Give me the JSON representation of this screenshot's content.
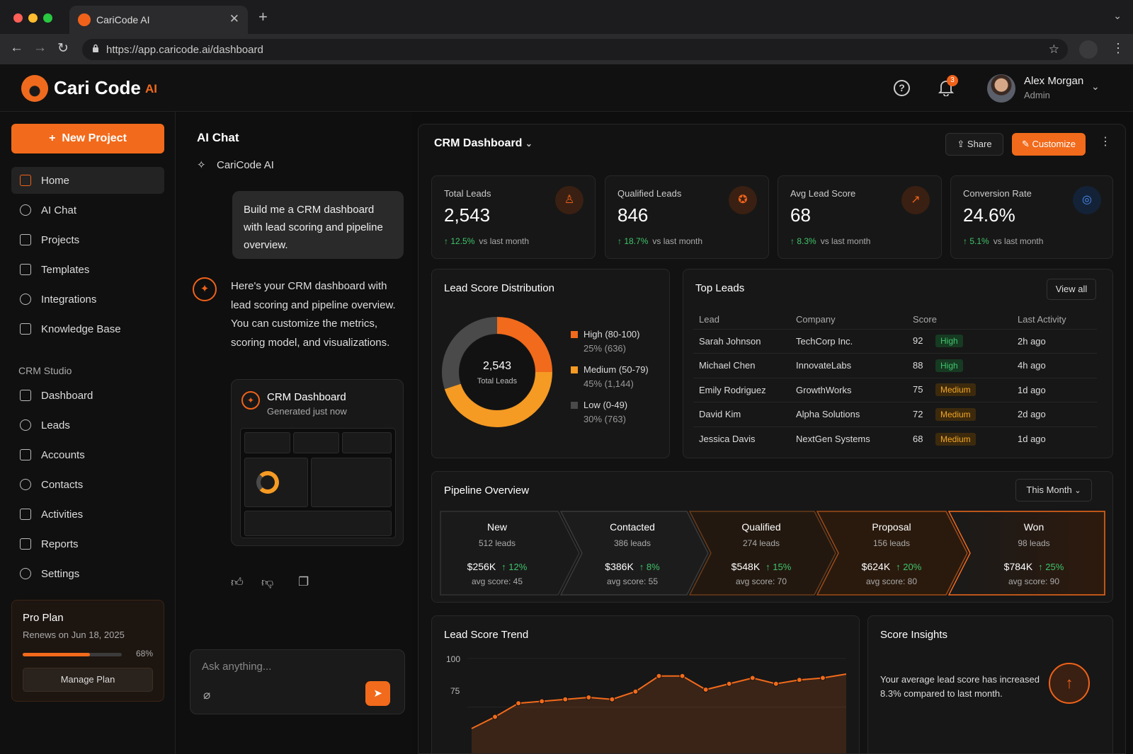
{
  "browser": {
    "tab_title": "CariCode AI",
    "url": "https://app.caricode.ai/dashboard"
  },
  "brand": {
    "name": "Cari Code",
    "suffix": "AI",
    "accent": "#f26a1b"
  },
  "user": {
    "name": "Alex Morgan",
    "role": "Admin",
    "notifications": "3"
  },
  "sidebar": {
    "new_project": "New Project",
    "items": [
      {
        "label": "Home",
        "icon": "home-icon"
      },
      {
        "label": "AI Chat",
        "icon": "chat-icon"
      },
      {
        "label": "Projects",
        "icon": "folder-icon"
      },
      {
        "label": "Templates",
        "icon": "grid-icon"
      },
      {
        "label": "Integrations",
        "icon": "integrations-icon"
      },
      {
        "label": "Knowledge Base",
        "icon": "book-icon"
      }
    ],
    "section": "CRM Studio",
    "crm_items": [
      {
        "label": "Dashboard",
        "icon": "dashboard-icon"
      },
      {
        "label": "Leads",
        "icon": "user-icon"
      },
      {
        "label": "Accounts",
        "icon": "building-icon"
      },
      {
        "label": "Contacts",
        "icon": "contact-icon"
      },
      {
        "label": "Activities",
        "icon": "calendar-check-icon"
      },
      {
        "label": "Reports",
        "icon": "chart-icon"
      },
      {
        "label": "Settings",
        "icon": "gear-icon"
      }
    ],
    "plan": {
      "name": "Pro Plan",
      "renews": "Renews on Jun 18, 2025",
      "usage": "68%",
      "usage_fraction": 0.68,
      "button": "Manage Plan"
    }
  },
  "chat": {
    "title": "AI Chat",
    "assistant": "CariCode AI",
    "user_message": "Build me a CRM dashboard with lead scoring and pipeline overview.",
    "ai_message": "Here's your CRM dashboard with lead scoring and pipeline overview. You can customize the metrics, scoring model, and visualizations.",
    "card_title": "CRM Dashboard",
    "card_sub": "Generated just now",
    "placeholder": "Ask anything..."
  },
  "dashboard": {
    "title": "CRM Dashboard",
    "share": "Share",
    "customize": "Customize",
    "kpis": [
      {
        "label": "Total Leads",
        "value": "2,543",
        "change": "12.5%",
        "compare": "vs last month",
        "icon": "user-icon"
      },
      {
        "label": "Qualified Leads",
        "value": "846",
        "change": "18.7%",
        "compare": "vs last month",
        "icon": "badge-check-icon"
      },
      {
        "label": "Avg Lead Score",
        "value": "68",
        "change": "8.3%",
        "compare": "vs last month",
        "icon": "trend-up-icon"
      },
      {
        "label": "Conversion Rate",
        "value": "24.6%",
        "change": "5.1%",
        "compare": "vs last month",
        "icon": "target-icon"
      }
    ],
    "distribution": {
      "title": "Lead Score Distribution",
      "center_value": "2,543",
      "center_label": "Total Leads",
      "segments": [
        {
          "label": "High (80-100)",
          "detail": "25% (636)",
          "value": 25,
          "color": "#f26a1b"
        },
        {
          "label": "Medium (50-79)",
          "detail": "45% (1,144)",
          "value": 45,
          "color": "#f59a23"
        },
        {
          "label": "Low (0-49)",
          "detail": "30% (763)",
          "value": 30,
          "color": "#4a4a4a"
        }
      ]
    },
    "top_leads": {
      "title": "Top Leads",
      "view_all": "View all",
      "columns": [
        "Lead",
        "Company",
        "Score",
        "Last Activity"
      ],
      "rows": [
        {
          "lead": "Sarah Johnson",
          "company": "TechCorp Inc.",
          "score": "92",
          "tag": "High",
          "activity": "2h ago"
        },
        {
          "lead": "Michael Chen",
          "company": "InnovateLabs",
          "score": "88",
          "tag": "High",
          "activity": "4h ago"
        },
        {
          "lead": "Emily Rodriguez",
          "company": "GrowthWorks",
          "score": "75",
          "tag": "Medium",
          "activity": "1d ago"
        },
        {
          "lead": "David Kim",
          "company": "Alpha Solutions",
          "score": "72",
          "tag": "Medium",
          "activity": "2d ago"
        },
        {
          "lead": "Jessica Davis",
          "company": "NextGen Systems",
          "score": "68",
          "tag": "Medium",
          "activity": "1d ago"
        }
      ]
    },
    "pipeline": {
      "title": "Pipeline Overview",
      "period": "This Month",
      "stages": [
        {
          "name": "New",
          "leads": "512 leads",
          "value": "$256K",
          "change": "12%",
          "avg": "avg score: 45"
        },
        {
          "name": "Contacted",
          "leads": "386 leads",
          "value": "$386K",
          "change": "8%",
          "avg": "avg score: 55"
        },
        {
          "name": "Qualified",
          "leads": "274 leads",
          "value": "$548K",
          "change": "15%",
          "avg": "avg score: 70"
        },
        {
          "name": "Proposal",
          "leads": "156 leads",
          "value": "$624K",
          "change": "20%",
          "avg": "avg score: 80"
        },
        {
          "name": "Won",
          "leads": "98 leads",
          "value": "$784K",
          "change": "25%",
          "avg": "avg score: 90"
        }
      ]
    },
    "trend": {
      "title": "Lead Score Trend"
    },
    "insights": {
      "title": "Score Insights",
      "text": "Your average lead score has increased 8.3% compared to last month."
    }
  },
  "chart_data": {
    "type": "line",
    "title": "Lead Score Trend",
    "ylim": [
      60,
      100
    ],
    "yticks": [
      "100",
      "75"
    ],
    "values": [
      64,
      70,
      77,
      78,
      79,
      80,
      79,
      83,
      91,
      91,
      84,
      87,
      90,
      87,
      89,
      90,
      92
    ]
  }
}
